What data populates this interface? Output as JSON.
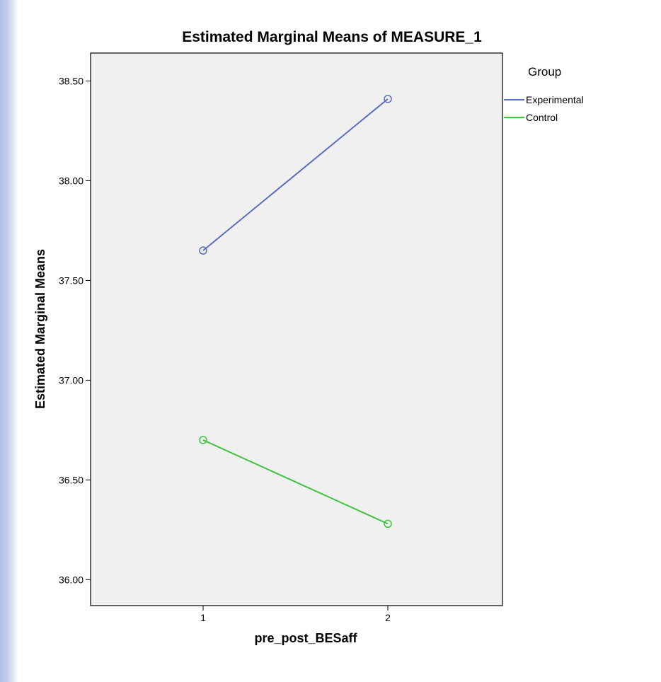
{
  "chart_data": {
    "type": "line",
    "title": "Estimated Marginal Means of MEASURE_1",
    "xlabel": "pre_post_BESaff",
    "ylabel": "Estimated Marginal Means",
    "categories": [
      "1",
      "2"
    ],
    "ylim": [
      35.87,
      38.64
    ],
    "yticks": [
      "36.00",
      "36.50",
      "37.00",
      "37.50",
      "38.00",
      "38.50"
    ],
    "legend": {
      "title": "Group",
      "placement": "top-right-outside"
    },
    "grid": false,
    "series": [
      {
        "name": "Experimental",
        "color": "#5b6bc0",
        "values": [
          37.65,
          38.41
        ]
      },
      {
        "name": "Control",
        "color": "#3cc43c",
        "values": [
          36.7,
          36.28
        ]
      }
    ]
  }
}
